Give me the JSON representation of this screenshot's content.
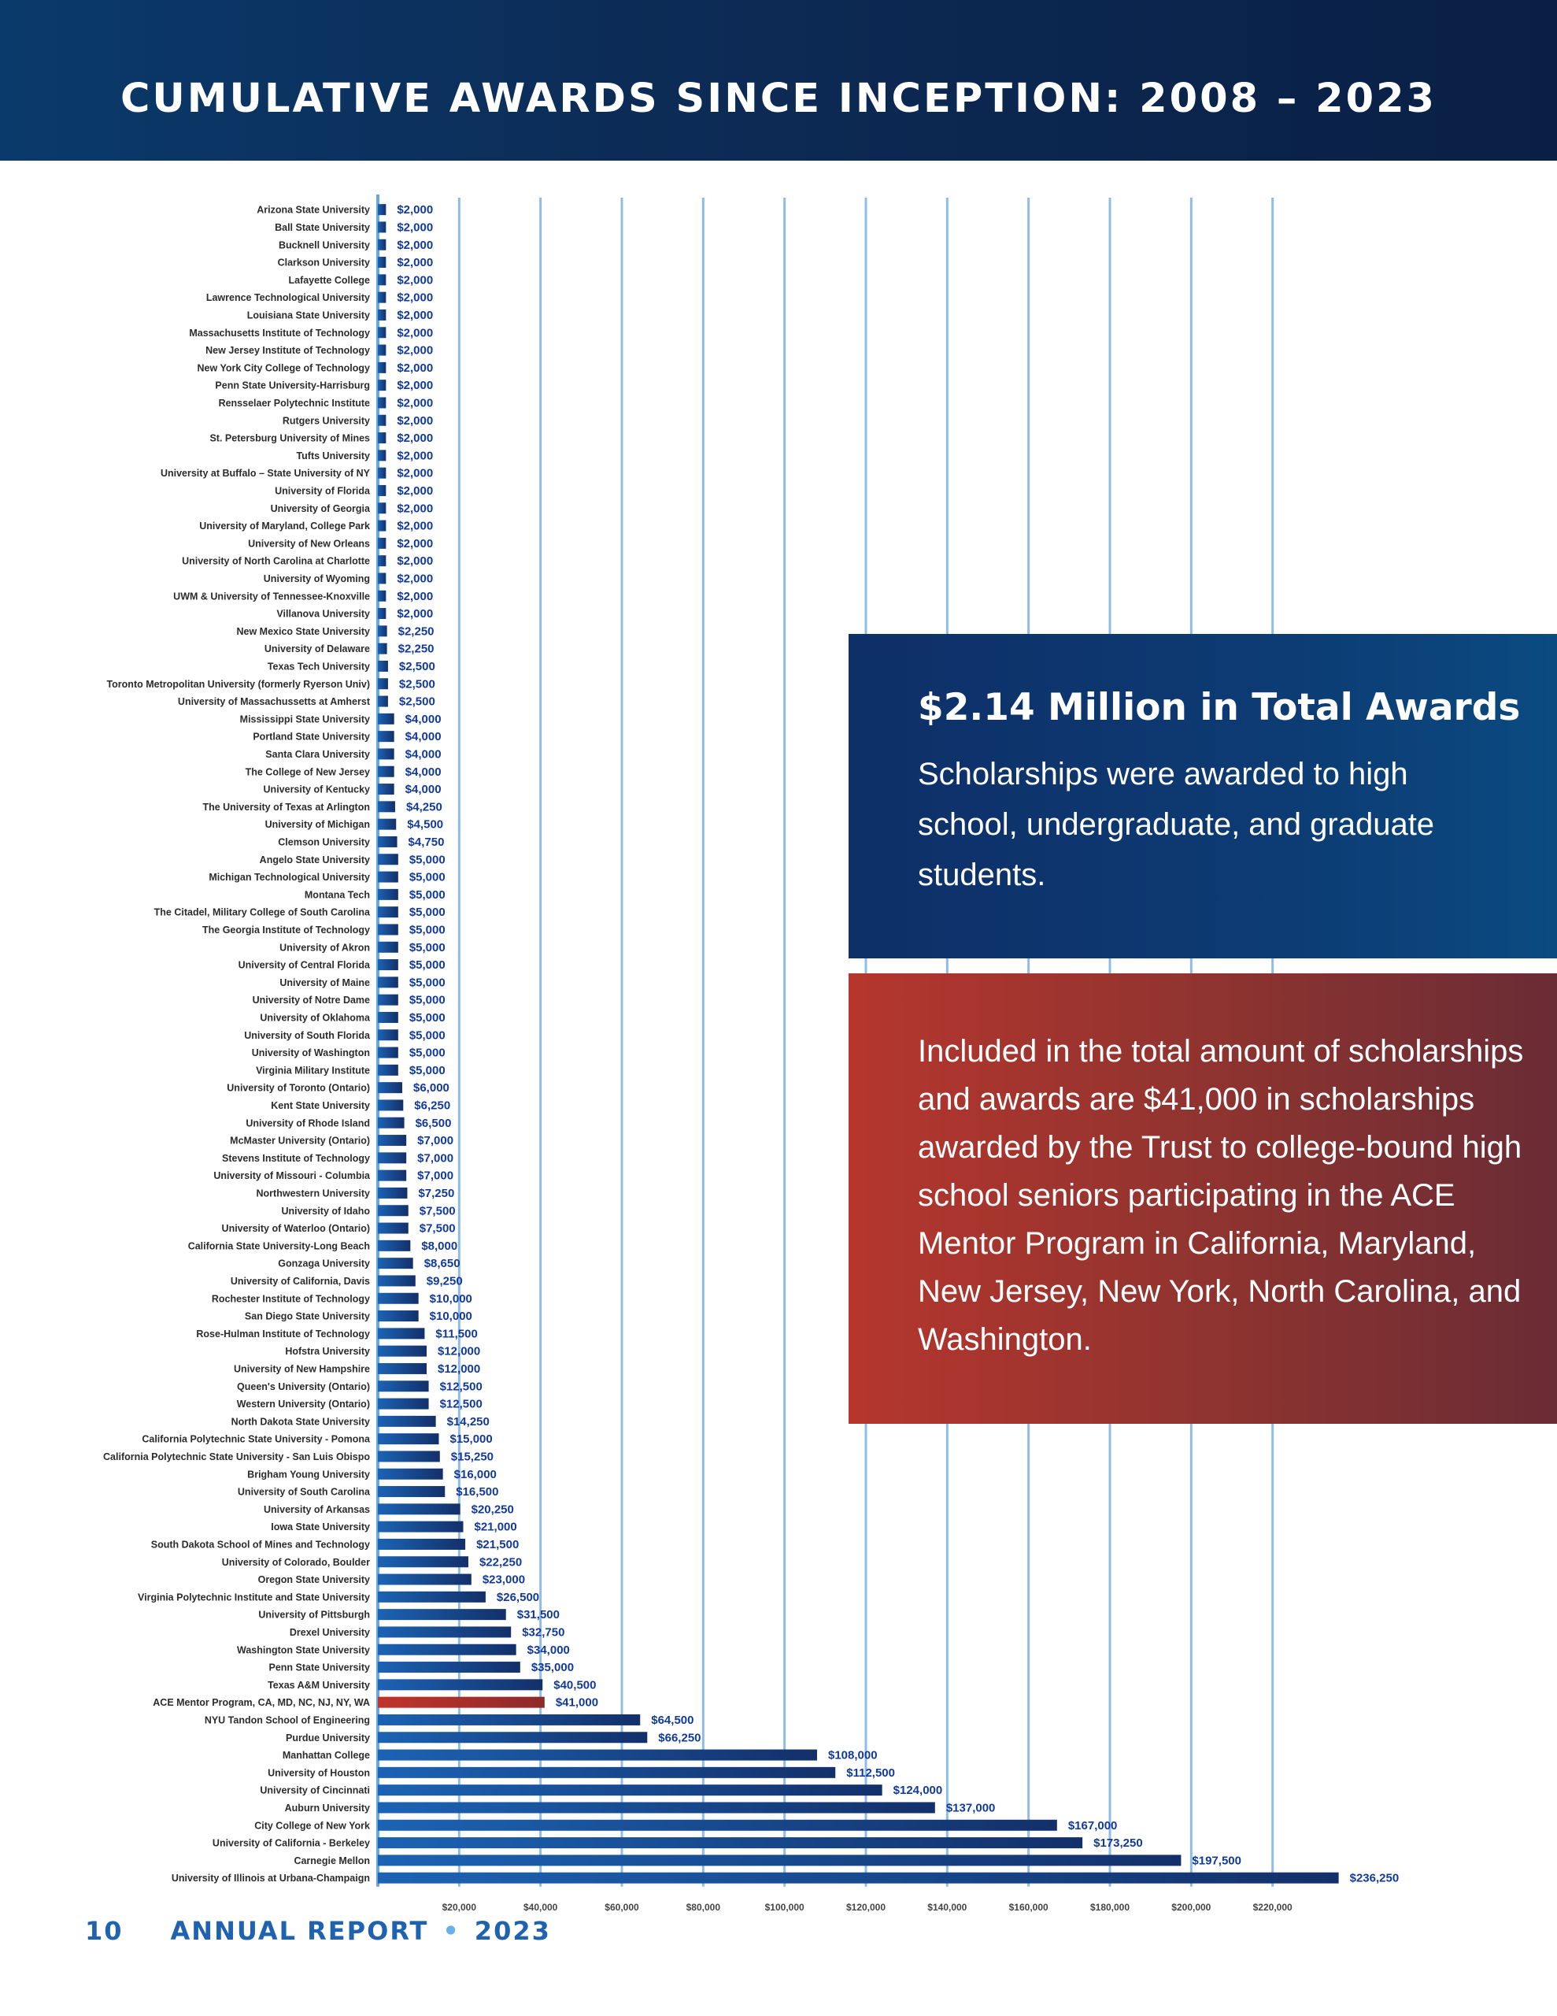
{
  "header": {
    "title": "CUMULATIVE AWARDS SINCE INCEPTION: 2008 – 2023"
  },
  "callout_total": {
    "title": "$2.14 Million in Total Awards",
    "text": "Scholarships were awarded to high school, undergraduate, and graduate students."
  },
  "callout_ace": {
    "text": "Included in the total amount of scholarships and awards are $41,000 in scholarships awarded by the Trust to college-bound high school seniors participating in the ACE Mentor Program in California, Maryland, New Jersey, New York, North Carolina, and Washington."
  },
  "footer": {
    "page": "10",
    "label": "ANNUAL REPORT",
    "separator": "•",
    "year": "2023"
  },
  "colors": {
    "bar": "#1a5aa8",
    "highlight_bar": "#b0302a",
    "highlight_label": "#c0302a",
    "value_label": "#123a9a",
    "axis": "#6aa6e0"
  },
  "chart_data": {
    "type": "bar",
    "orientation": "horizontal",
    "xlim": [
      0,
      240000
    ],
    "xticks": [
      20000,
      40000,
      60000,
      80000,
      100000,
      120000,
      140000,
      160000,
      180000,
      200000,
      220000
    ],
    "xtick_labels": [
      "$20,000",
      "$40,000",
      "$60,000",
      "$80,000",
      "$100,000",
      "$120,000",
      "$140,000",
      "$160,000",
      "$180,000",
      "$200,000",
      "$220,000"
    ],
    "grid": "vertical",
    "highlight_category": "ACE Mentor Program, CA, MD, NC, NJ, NY, WA",
    "categories": [
      "Arizona State University",
      "Ball State University",
      "Bucknell University",
      "Clarkson University",
      "Lafayette College",
      "Lawrence Technological University",
      "Louisiana State University",
      "Massachusetts Institute of Technology",
      "New Jersey Institute of Technology",
      "New York City College of Technology",
      "Penn State University-Harrisburg",
      "Rensselaer Polytechnic Institute",
      "Rutgers University",
      "St. Petersburg University of Mines",
      "Tufts University",
      "University at Buffalo – State University of NY",
      "University of Florida",
      "University of Georgia",
      "University of Maryland, College Park",
      "University of New Orleans",
      "University of North Carolina at Charlotte",
      "University of Wyoming",
      "UWM & University of Tennessee-Knoxville",
      "Villanova University",
      "New Mexico State University",
      "University of Delaware",
      "Texas Tech University",
      "Toronto Metropolitan University (formerly Ryerson Univ)",
      "University of Massachussetts at Amherst",
      "Mississippi State University",
      "Portland State University",
      "Santa Clara University",
      "The College of New Jersey",
      "University of Kentucky",
      "The University of Texas at Arlington",
      "University of Michigan",
      "Clemson University",
      "Angelo State University",
      "Michigan Technological University",
      "Montana Tech",
      "The Citadel, Military College of South Carolina",
      "The Georgia Institute of Technology",
      "University of Akron",
      "University of Central Florida",
      "University of Maine",
      "University of Notre Dame",
      "University of Oklahoma",
      "University of South Florida",
      "University of Washington",
      "Virginia Military Institute",
      "University of Toronto (Ontario)",
      "Kent State University",
      "University of Rhode Island",
      "McMaster University (Ontario)",
      "Stevens Institute of Technology",
      "University of Missouri - Columbia",
      "Northwestern University",
      "University of Idaho",
      "University of Waterloo (Ontario)",
      "California State University-Long Beach",
      "Gonzaga University",
      "University of California, Davis",
      "Rochester Institute of Technology",
      "San Diego State University",
      "Rose-Hulman Institute of Technology",
      "Hofstra University",
      "University of New Hampshire",
      "Queen's University (Ontario)",
      "Western University (Ontario)",
      "North Dakota State University",
      "California Polytechnic State University - Pomona",
      "California Polytechnic State University - San Luis Obispo",
      "Brigham Young University",
      "University of South Carolina",
      "University of Arkansas",
      "Iowa State University",
      "South Dakota School of Mines and Technology",
      "University of Colorado, Boulder",
      "Oregon State University",
      "Virginia Polytechnic Institute and State University",
      "University of Pittsburgh",
      "Drexel University",
      "Washington State University",
      "Penn State University",
      "Texas A&M University",
      "ACE Mentor Program, CA, MD, NC, NJ, NY, WA",
      "NYU Tandon School of Engineering",
      "Purdue University",
      "Manhattan College",
      "University of Houston",
      "University of Cincinnati",
      "Auburn University",
      "City College of New York",
      "University of California - Berkeley",
      "Carnegie Mellon",
      "University of Illinois at Urbana-Champaign"
    ],
    "values": [
      2000,
      2000,
      2000,
      2000,
      2000,
      2000,
      2000,
      2000,
      2000,
      2000,
      2000,
      2000,
      2000,
      2000,
      2000,
      2000,
      2000,
      2000,
      2000,
      2000,
      2000,
      2000,
      2000,
      2000,
      2250,
      2250,
      2500,
      2500,
      2500,
      4000,
      4000,
      4000,
      4000,
      4000,
      4250,
      4500,
      4750,
      5000,
      5000,
      5000,
      5000,
      5000,
      5000,
      5000,
      5000,
      5000,
      5000,
      5000,
      5000,
      5000,
      6000,
      6250,
      6500,
      7000,
      7000,
      7000,
      7250,
      7500,
      7500,
      8000,
      8650,
      9250,
      10000,
      10000,
      11500,
      12000,
      12000,
      12500,
      12500,
      14250,
      15000,
      15250,
      16000,
      16500,
      20250,
      21000,
      21500,
      22250,
      23000,
      26500,
      31500,
      32750,
      34000,
      35000,
      40500,
      41000,
      64500,
      66250,
      108000,
      112500,
      124000,
      137000,
      167000,
      173250,
      197500,
      236250
    ],
    "value_labels": [
      "$2,000",
      "$2,000",
      "$2,000",
      "$2,000",
      "$2,000",
      "$2,000",
      "$2,000",
      "$2,000",
      "$2,000",
      "$2,000",
      "$2,000",
      "$2,000",
      "$2,000",
      "$2,000",
      "$2,000",
      "$2,000",
      "$2,000",
      "$2,000",
      "$2,000",
      "$2,000",
      "$2,000",
      "$2,000",
      "$2,000",
      "$2,000",
      "$2,250",
      "$2,250",
      "$2,500",
      "$2,500",
      "$2,500",
      "$4,000",
      "$4,000",
      "$4,000",
      "$4,000",
      "$4,000",
      "$4,250",
      "$4,500",
      "$4,750",
      "$5,000",
      "$5,000",
      "$5,000",
      "$5,000",
      "$5,000",
      "$5,000",
      "$5,000",
      "$5,000",
      "$5,000",
      "$5,000",
      "$5,000",
      "$5,000",
      "$5,000",
      "$6,000",
      "$6,250",
      "$6,500",
      "$7,000",
      "$7,000",
      "$7,000",
      "$7,250",
      "$7,500",
      "$7,500",
      "$8,000",
      "$8,650",
      "$9,250",
      "$10,000",
      "$10,000",
      "$11,500",
      "$12,000",
      "$12,000",
      "$12,500",
      "$12,500",
      "$14,250",
      "$15,000",
      "$15,250",
      "$16,000",
      "$16,500",
      "$20,250",
      "$21,000",
      "$21,500",
      "$22,250",
      "$23,000",
      "$26,500",
      "$31,500",
      "$32,750",
      "$34,000",
      "$35,000",
      "$40,500",
      "$41,000",
      "$64,500",
      "$66,250",
      "$108,000",
      "$112,500",
      "$124,000",
      "$137,000",
      "$167,000",
      "$173,250",
      "$197,500",
      "$236,250"
    ]
  }
}
